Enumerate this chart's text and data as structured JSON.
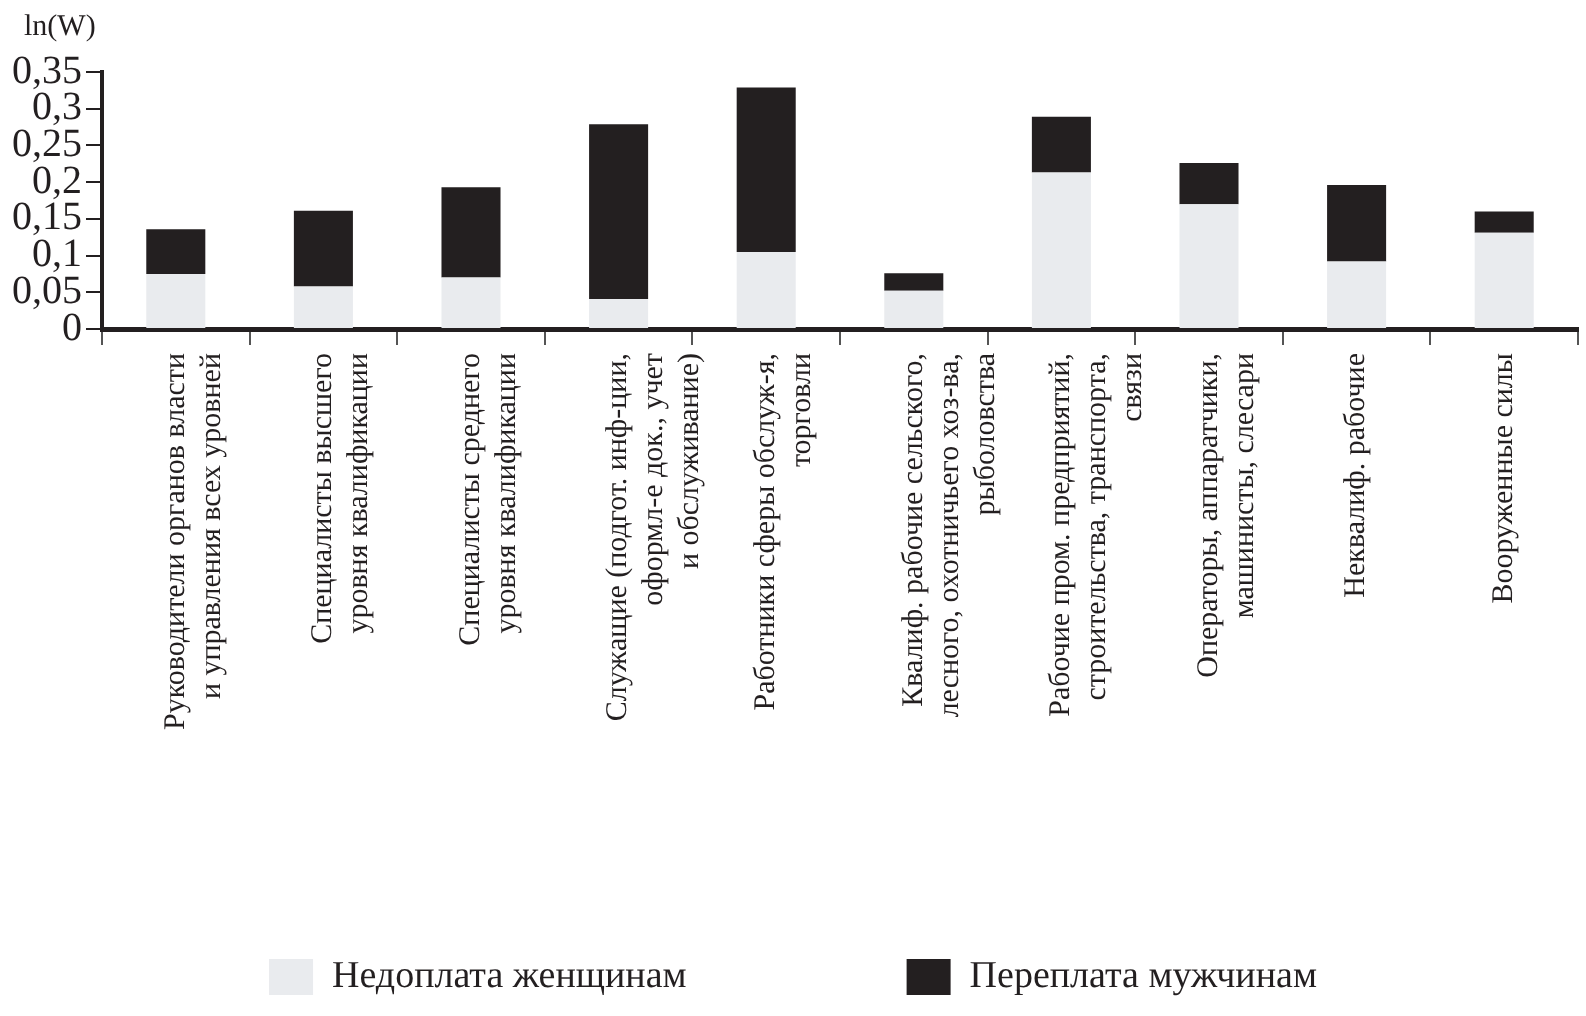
{
  "chart_data": {
    "type": "bar",
    "ylabel": "ln(W)",
    "stacked": true,
    "grid": false,
    "legend": "bottom",
    "categories": [
      [
        "Руководители органов власти",
        "и управления всех уровней"
      ],
      [
        "Специалисты высшего",
        "уровня квалификации"
      ],
      [
        "Специалисты среднего",
        "уровня квалификации"
      ],
      [
        "Служащие (подгот. инф-ции,",
        "оформл-е док., учет",
        "и обслуживание)"
      ],
      [
        "Работники сферы обслуж-я,",
        "торговли"
      ],
      [
        "Квалиф. рабочие сельского,",
        "лесного, охотничьего хоз-ва,",
        "рыболовства"
      ],
      [
        "Рабочие пром. предприятий,",
        "строительства, транспорта,",
        "связи"
      ],
      [
        "Операторы, аппаратчики,",
        "машинисты, слесари"
      ],
      [
        "Неквалиф. рабочие"
      ],
      [
        "Вооруженные силы"
      ]
    ],
    "ylim": [
      0,
      0.35
    ],
    "yticks": [
      {
        "value": 0,
        "label": "0"
      },
      {
        "value": 0.05,
        "label": "0,05"
      },
      {
        "value": 0.1,
        "label": "0,1"
      },
      {
        "value": 0.15,
        "label": "0,15"
      },
      {
        "value": 0.2,
        "label": "0,2"
      },
      {
        "value": 0.25,
        "label": "0,25"
      },
      {
        "value": 0.3,
        "label": "0,3"
      },
      {
        "value": 0.35,
        "label": "0,35"
      }
    ],
    "series": [
      {
        "name": "Недоплата женщинам",
        "color": "#e9ebee",
        "values": [
          0.075,
          0.058,
          0.07,
          0.041,
          0.105,
          0.052,
          0.213,
          0.17,
          0.092,
          0.131
        ]
      },
      {
        "name": "Переплата мужчинам",
        "color": "#231f20",
        "values": [
          0.061,
          0.103,
          0.123,
          0.238,
          0.224,
          0.024,
          0.076,
          0.056,
          0.104,
          0.029
        ]
      }
    ]
  }
}
